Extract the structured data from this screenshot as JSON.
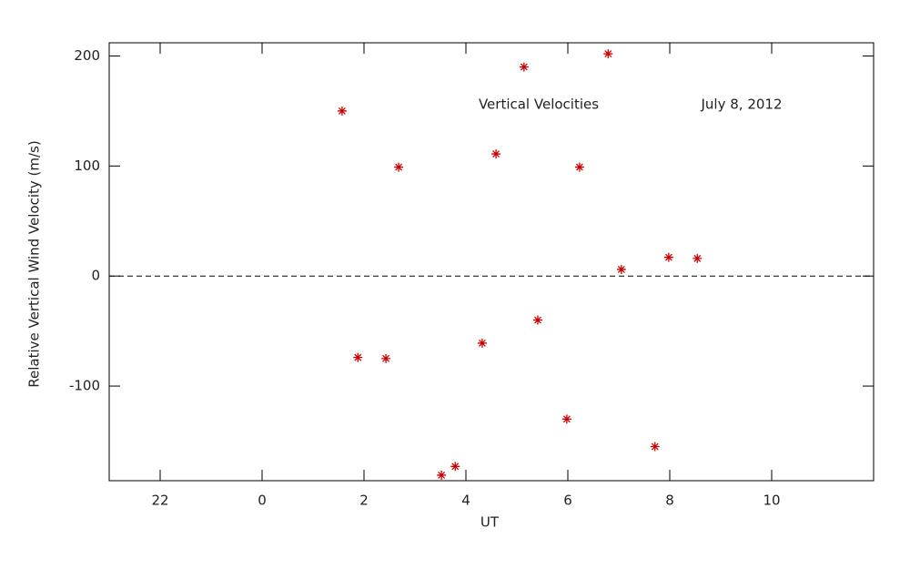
{
  "chart_data": {
    "type": "scatter",
    "annotations": [
      "Vertical Velocities",
      "July 8, 2012"
    ],
    "x_label": "UT",
    "y_label": "Relative Vertical Wind Velocity (m/s)",
    "x": [
      1.57,
      1.88,
      2.43,
      2.68,
      3.52,
      3.79,
      4.32,
      4.59,
      5.14,
      5.41,
      5.98,
      6.23,
      6.79,
      7.05,
      7.71,
      7.98,
      8.54
    ],
    "values": [
      150,
      -74,
      -75,
      99,
      -181,
      -173,
      -61,
      111,
      190,
      -40,
      -130,
      99,
      202,
      6,
      -155,
      17,
      16
    ],
    "color": "#cc0000",
    "marker": "asterisk",
    "xlim": [
      -3,
      12
    ],
    "xticks": [
      {
        "value": -2,
        "label": "22"
      },
      0,
      2,
      4,
      6,
      8,
      10
    ],
    "ylim": [
      -186,
      212
    ],
    "yticks": [
      -100,
      0,
      100,
      200
    ],
    "reference_line": 0
  }
}
